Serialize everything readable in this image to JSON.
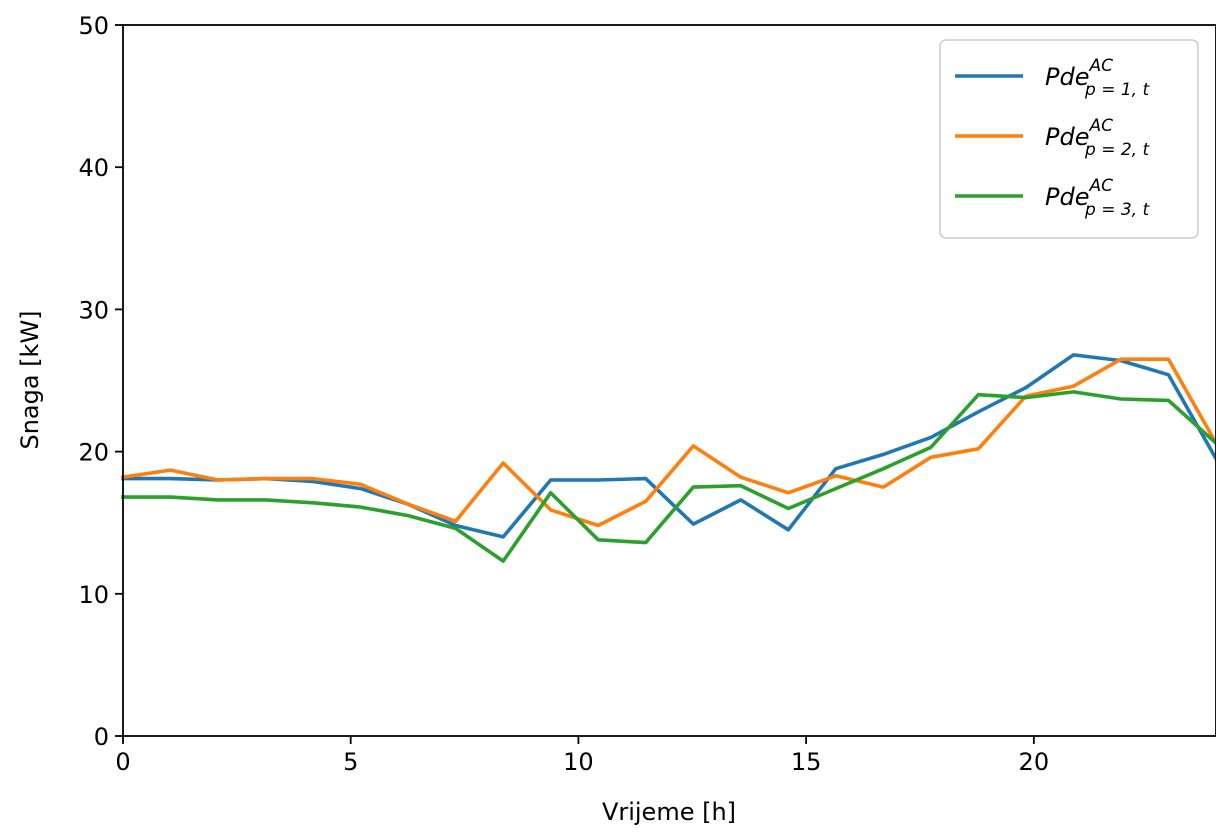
{
  "chart_data": {
    "type": "line",
    "title": "",
    "xlabel": "Vrijeme [h]",
    "ylabel": "Snaga [kW]",
    "xlim": [
      0,
      24
    ],
    "ylim": [
      0,
      50
    ],
    "xticks": [
      0,
      5,
      10,
      15,
      20
    ],
    "yticks": [
      0,
      10,
      20,
      30,
      40,
      50
    ],
    "grid": false,
    "legend_position": "top-right",
    "x": [
      0,
      1.043,
      2.087,
      3.13,
      4.174,
      5.217,
      6.261,
      7.304,
      8.348,
      9.391,
      10.435,
      11.478,
      12.522,
      13.565,
      14.609,
      15.652,
      16.696,
      17.739,
      18.783,
      19.826,
      20.87,
      21.913,
      22.957,
      24
    ],
    "series": [
      {
        "name": "Pde",
        "name_sup": "AC",
        "name_sub": "p = 1, t",
        "color": "#1f77b4",
        "values": [
          18.1,
          18.1,
          18.0,
          18.1,
          17.9,
          17.4,
          16.3,
          14.8,
          14.0,
          18.0,
          18.0,
          18.1,
          14.9,
          16.6,
          14.5,
          18.8,
          19.8,
          21.0,
          22.8,
          24.5,
          26.8,
          26.4,
          25.4,
          19.5
        ]
      },
      {
        "name": "Pde",
        "name_sup": "AC",
        "name_sub": "p = 2, t",
        "color": "#ff7f0e",
        "values": [
          18.2,
          18.7,
          18.0,
          18.1,
          18.1,
          17.7,
          16.3,
          15.1,
          19.2,
          15.9,
          14.8,
          16.5,
          20.4,
          18.2,
          17.1,
          18.3,
          17.5,
          19.6,
          20.2,
          23.9,
          24.6,
          26.5,
          26.5,
          20.6
        ]
      },
      {
        "name": "Pde",
        "name_sup": "AC",
        "name_sub": "p = 3, t",
        "color": "#2ca02c",
        "values": [
          16.8,
          16.8,
          16.6,
          16.6,
          16.4,
          16.1,
          15.5,
          14.6,
          12.3,
          17.1,
          13.8,
          13.6,
          17.5,
          17.6,
          16.0,
          17.4,
          18.8,
          20.3,
          24.0,
          23.8,
          24.2,
          23.7,
          23.6,
          20.6
        ]
      }
    ]
  }
}
